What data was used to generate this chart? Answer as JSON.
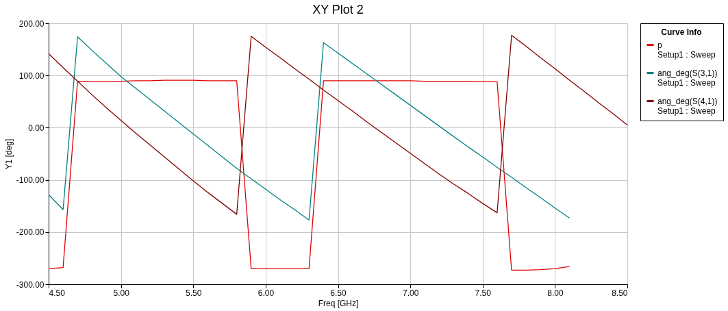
{
  "chart_data": {
    "type": "line",
    "title": "XY Plot 2",
    "xlabel": "Freq [GHz]",
    "ylabel": "Y1 [deg]",
    "legend_title": "Curve Info",
    "x": [
      4.5,
      4.6,
      4.7,
      4.8,
      4.9,
      5.0,
      5.1,
      5.2,
      5.3,
      5.4,
      5.5,
      5.6,
      5.7,
      5.8,
      5.9,
      6.0,
      6.1,
      6.2,
      6.3,
      6.4,
      6.5,
      6.6,
      6.7,
      6.8,
      6.9,
      7.0,
      7.1,
      7.2,
      7.3,
      7.4,
      7.5,
      7.6,
      7.7,
      7.8,
      7.9,
      8.0,
      8.1,
      8.2,
      8.3,
      8.4,
      8.5
    ],
    "series": [
      {
        "name": "p\nSetup1 : Sweep",
        "color": "#e00000",
        "values": [
          -270,
          -268,
          89,
          88,
          88,
          89,
          90,
          90,
          91,
          91,
          91,
          90,
          90,
          90,
          -270,
          -270,
          -270,
          -270,
          -270,
          90,
          90,
          90,
          90,
          90,
          90,
          90,
          89,
          89,
          89,
          89,
          88,
          88,
          -273,
          -273,
          -272,
          -270,
          -266,
          null,
          null,
          null,
          null
        ]
      },
      {
        "name": "ang_deg(S(3,1))\nSetup1 : Sweep",
        "color": "#008080",
        "values": [
          -128,
          -157,
          174,
          148,
          123,
          98,
          76,
          54,
          32,
          10,
          -12,
          -34,
          -56,
          -78,
          -98,
          -118,
          -138,
          -157,
          -177,
          163,
          143,
          123,
          103,
          83,
          63,
          43,
          23,
          3,
          -17,
          -37,
          -56,
          -76,
          -95,
          -115,
          -134,
          -154,
          -173,
          null,
          null,
          null,
          null
        ]
      },
      {
        "name": "ang_deg(S(4,1))\nSetup1 : Sweep",
        "color": "#800000",
        "values": [
          142,
          115,
          89,
          63,
          38,
          14,
          -10,
          -33,
          -56,
          -79,
          -102,
          -124,
          -145,
          -166,
          175,
          154,
          134,
          113,
          93,
          72,
          52,
          32,
          11,
          -9,
          -29,
          -49,
          -69,
          -89,
          -108,
          -126,
          -145,
          -163,
          177,
          156,
          134,
          113,
          91,
          70,
          48,
          27,
          5
        ]
      }
    ],
    "xlim": [
      4.5,
      8.5
    ],
    "xticks": [
      {
        "value": 4.5,
        "label": "4.50"
      },
      {
        "value": 5.0,
        "label": "5.00"
      },
      {
        "value": 5.5,
        "label": "5.50"
      },
      {
        "value": 6.0,
        "label": "6.00"
      },
      {
        "value": 6.5,
        "label": "6.50"
      },
      {
        "value": 7.0,
        "label": "7.00"
      },
      {
        "value": 7.5,
        "label": "7.50"
      },
      {
        "value": 8.0,
        "label": "8.00"
      },
      {
        "value": 8.5,
        "label": "8.50"
      }
    ],
    "ylim": [
      -300,
      200
    ],
    "yticks": [
      {
        "value": -300,
        "label": "-300.00"
      },
      {
        "value": -200,
        "label": "-200.00"
      },
      {
        "value": -100,
        "label": "-100.00"
      },
      {
        "value": 0,
        "label": "0.00"
      },
      {
        "value": 100,
        "label": "100.00"
      },
      {
        "value": 200,
        "label": "200.00"
      }
    ],
    "grid": true,
    "legend": "right"
  }
}
